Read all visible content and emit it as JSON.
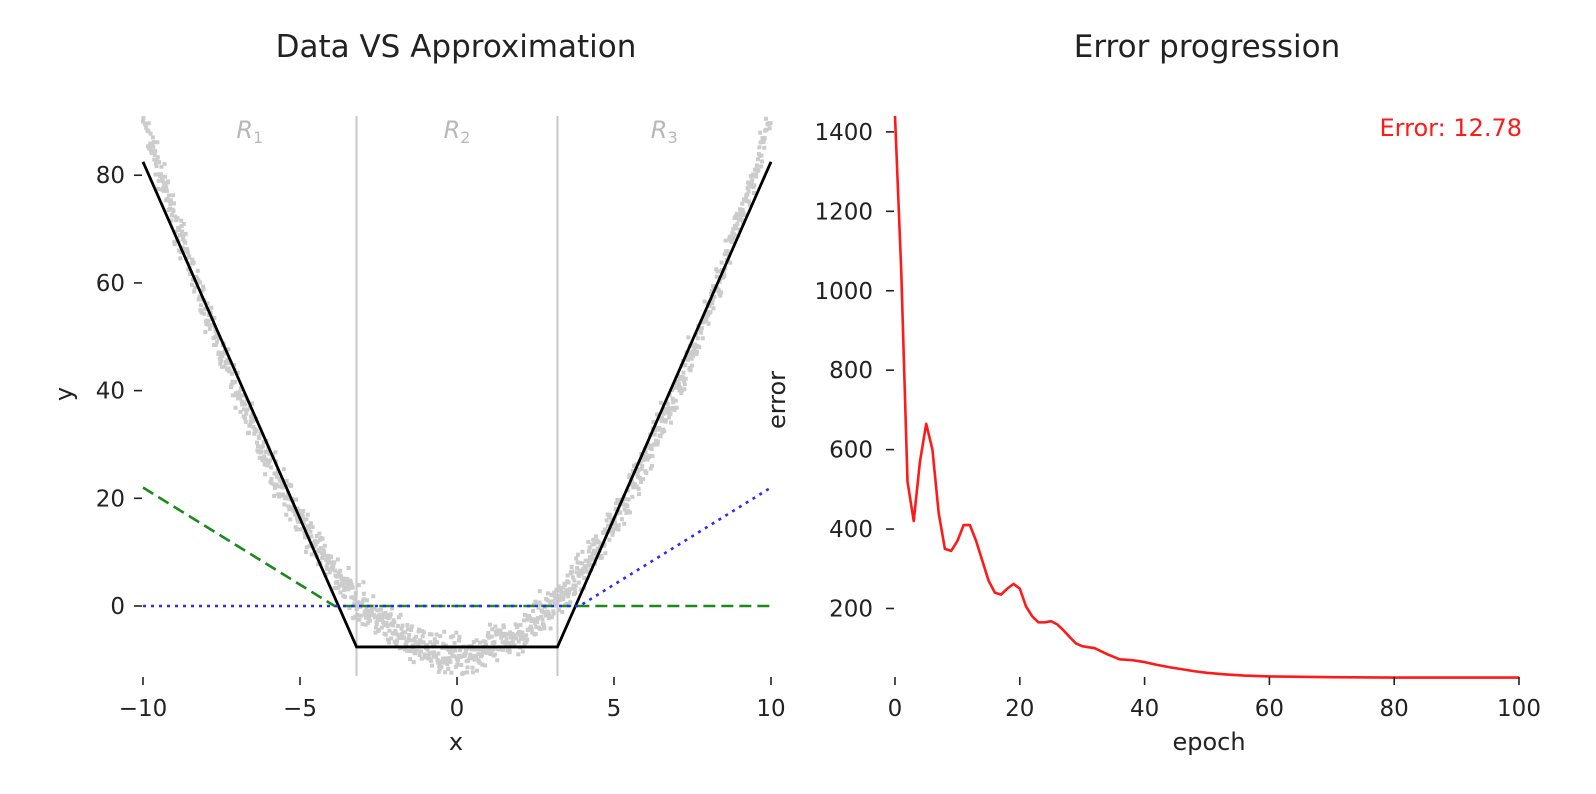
{
  "chart_data": [
    {
      "type": "line",
      "title": "Data VS Approximation",
      "xlabel": "x",
      "ylabel": "y",
      "xlim": [
        -10,
        10
      ],
      "ylim": [
        -13,
        91
      ],
      "xticks": [
        -10,
        -5,
        0,
        5,
        10
      ],
      "xtick_labels": [
        "−10",
        "−5",
        "0",
        "5",
        "10"
      ],
      "yticks": [
        0,
        20,
        40,
        60,
        80
      ],
      "ytick_labels": [
        "0",
        "20",
        "40",
        "60",
        "80"
      ],
      "grid": false,
      "region_dividers": [
        -3.2,
        3.2
      ],
      "region_labels": [
        {
          "text": "R",
          "sub": "1",
          "x": -6.6
        },
        {
          "text": "R",
          "sub": "2",
          "x": 0
        },
        {
          "text": "R",
          "sub": "3",
          "x": 6.6
        }
      ],
      "scatter": {
        "description": "noisy samples of y = x^2 - 9",
        "color": "#cccccc",
        "x_range": [
          -10,
          10
        ],
        "function": "x^2 - 9",
        "noise": 2.5
      },
      "series": [
        {
          "style": "solid",
          "color": "#000000",
          "x": [
            -10,
            -3.2,
            3.2,
            10
          ],
          "y": [
            82.5,
            -7.6,
            -7.6,
            82.5
          ]
        },
        {
          "style": "dashed",
          "color": "#1a8a1a",
          "x": [
            -10,
            -3.9,
            10
          ],
          "y": [
            22.0,
            0,
            0
          ]
        },
        {
          "style": "dotted",
          "color": "#2a2aff",
          "x": [
            -10,
            3.9,
            10
          ],
          "y": [
            0,
            0,
            22.0
          ]
        }
      ]
    },
    {
      "type": "line",
      "title": "Error progression",
      "xlabel": "epoch",
      "ylabel": "error",
      "xlim": [
        0,
        100
      ],
      "ylim": [
        30,
        1440
      ],
      "xticks": [
        0,
        20,
        40,
        60,
        80,
        100
      ],
      "xtick_labels": [
        "0",
        "20",
        "40",
        "60",
        "80",
        "100"
      ],
      "yticks": [
        200,
        400,
        600,
        800,
        1000,
        1200,
        1400
      ],
      "ytick_labels": [
        "200",
        "400",
        "600",
        "800",
        "1000",
        "1200",
        "1400"
      ],
      "grid": false,
      "annotation": "Error: 12.78",
      "series": [
        {
          "color": "#ff1a1a",
          "x": [
            0,
            1,
            2,
            3,
            4,
            5,
            6,
            7,
            8,
            9,
            10,
            11,
            12,
            13,
            14,
            15,
            16,
            17,
            18,
            19,
            20,
            21,
            22,
            23,
            24,
            25,
            26,
            27,
            28,
            29,
            30,
            32,
            34,
            36,
            38,
            40,
            42,
            44,
            46,
            48,
            50,
            53,
            56,
            60,
            65,
            70,
            80,
            90,
            100
          ],
          "y": [
            1440,
            1050,
            520,
            420,
            570,
            665,
            600,
            440,
            350,
            345,
            370,
            410,
            410,
            370,
            320,
            270,
            240,
            235,
            250,
            262,
            250,
            205,
            180,
            165,
            165,
            168,
            160,
            145,
            128,
            112,
            105,
            100,
            85,
            72,
            70,
            65,
            58,
            52,
            47,
            42,
            38,
            34,
            31,
            29,
            28,
            27,
            26,
            26,
            26
          ]
        }
      ]
    }
  ]
}
